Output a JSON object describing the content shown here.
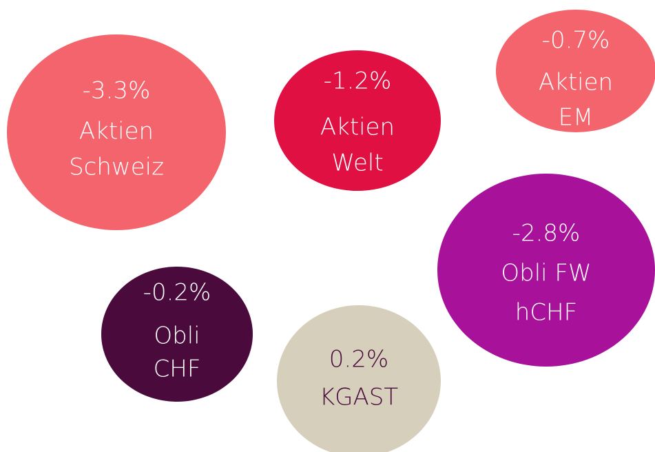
{
  "nodes": [
    {
      "value": "-3.3%",
      "label": [
        "Aktien",
        "Schweiz"
      ],
      "color": "#f4646d",
      "text_color": "#ffffff"
    },
    {
      "value": "-1.2%",
      "label": [
        "Aktien",
        "Welt"
      ],
      "color": "#e01042",
      "text_color": "#ffffff"
    },
    {
      "value": "-0.7%",
      "label": [
        "Aktien",
        "EM"
      ],
      "color": "#f4646d",
      "text_color": "#ffffff"
    },
    {
      "value": "-2.8%",
      "label": [
        "Obli FW",
        "hCHF"
      ],
      "color": "#a8129b",
      "text_color": "#ffffff"
    },
    {
      "value": "-0.2%",
      "label": [
        "Obli",
        "CHF"
      ],
      "color": "#4a0a3c",
      "text_color": "#ffffff"
    },
    {
      "value": "0.2%",
      "label": [
        "KGAST"
      ],
      "color": "#d6cfbc",
      "text_color": "#4a0a3c"
    }
  ]
}
